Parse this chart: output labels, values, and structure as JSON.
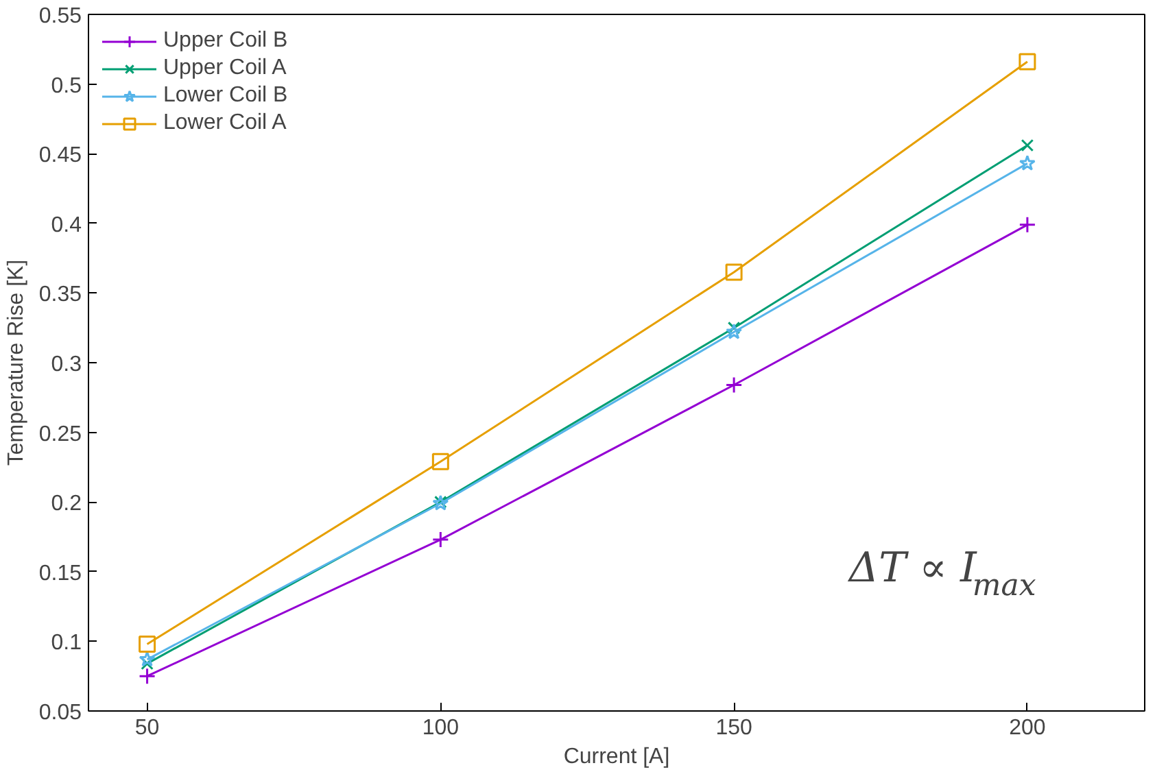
{
  "chart_data": {
    "type": "line",
    "xlabel": "Current [A]",
    "ylabel": "Temperature Rise [K]",
    "x": [
      50,
      100,
      150,
      200
    ],
    "series": [
      {
        "name": "Upper Coil B",
        "color": "#9400d3",
        "marker": "cross",
        "values": [
          0.075,
          0.173,
          0.284,
          0.399
        ]
      },
      {
        "name": "Upper Coil A",
        "color": "#009e73",
        "marker": "x",
        "values": [
          0.084,
          0.2,
          0.325,
          0.456
        ]
      },
      {
        "name": "Lower Coil B",
        "color": "#56b4e9",
        "marker": "star",
        "values": [
          0.087,
          0.199,
          0.322,
          0.443
        ]
      },
      {
        "name": "Lower Coil A",
        "color": "#e69f00",
        "marker": "square",
        "values": [
          0.098,
          0.229,
          0.365,
          0.516
        ]
      }
    ],
    "xlim": [
      40,
      220
    ],
    "ylim": [
      0.05,
      0.55
    ],
    "xticks": [
      50,
      100,
      150,
      200
    ],
    "yticks": [
      0.05,
      0.1,
      0.15,
      0.2,
      0.25,
      0.3,
      0.35,
      0.4,
      0.45,
      0.5,
      0.55
    ],
    "annotations": [
      "ΔT ∝ I$_{max}$"
    ],
    "legend": "top left",
    "grid": false,
    "line_style": "solid"
  }
}
